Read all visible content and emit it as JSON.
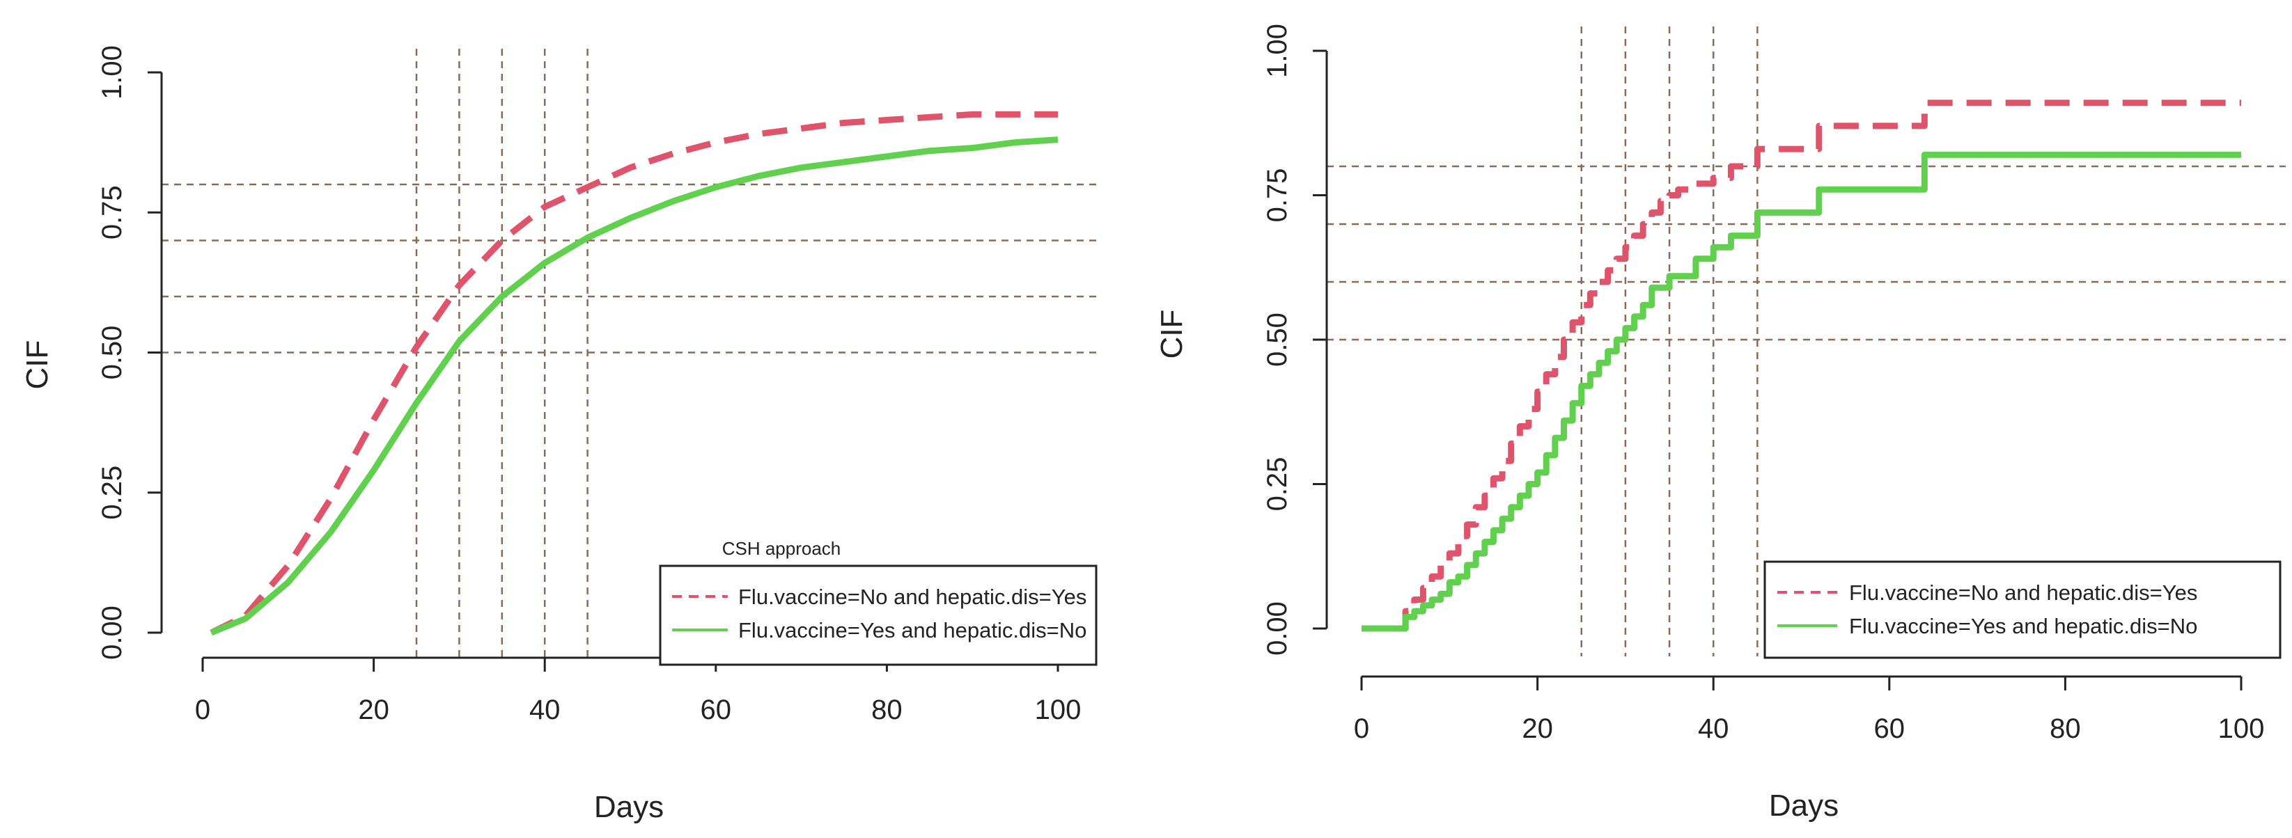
{
  "colors": {
    "no_vaccine_hepatic_yes": "#DF536B",
    "vaccine_yes_hepatic_no": "#61D04F",
    "reference_lines": "#8B6A55",
    "axis": "#222222"
  },
  "chart_data": [
    {
      "type": "line",
      "panel": "left",
      "method": "CSH approach",
      "xlabel": "Days",
      "ylabel": "CIF",
      "xlim": [
        0,
        100
      ],
      "ylim": [
        0,
        1
      ],
      "x_ticks": [
        0,
        20,
        40,
        60,
        80,
        100
      ],
      "x_tick_labels": [
        "0",
        "20",
        "40",
        "60",
        "80",
        "100"
      ],
      "y_ticks": [
        0,
        0.25,
        0.5,
        0.75,
        1
      ],
      "y_tick_labels": [
        "0.00",
        "0.25",
        "0.50",
        "0.75",
        "1.00"
      ],
      "reference_lines": {
        "vertical_x": [
          25,
          30,
          35,
          40,
          45
        ],
        "horizontal_y": [
          0.5,
          0.6,
          0.7,
          0.8
        ]
      },
      "legend": {
        "title": "CSH approach",
        "placement": "bottom-right",
        "entries": [
          "Flu.vaccine=No and hepatic.dis=Yes",
          "Flu.vaccine=Yes and hepatic.dis=No"
        ]
      },
      "series": [
        {
          "name": "Flu.vaccine=No and hepatic.dis=Yes",
          "style": "dashed",
          "x": [
            1,
            5,
            10,
            15,
            20,
            25,
            30,
            35,
            40,
            45,
            50,
            55,
            60,
            65,
            70,
            75,
            80,
            85,
            90,
            95,
            100
          ],
          "y": [
            0.0,
            0.03,
            0.12,
            0.24,
            0.38,
            0.51,
            0.62,
            0.7,
            0.76,
            0.795,
            0.83,
            0.855,
            0.875,
            0.89,
            0.9,
            0.91,
            0.915,
            0.92,
            0.925,
            0.925,
            0.925
          ]
        },
        {
          "name": "Flu.vaccine=Yes and hepatic.dis=No",
          "style": "solid",
          "x": [
            1,
            5,
            10,
            15,
            20,
            25,
            30,
            35,
            40,
            45,
            50,
            55,
            60,
            65,
            70,
            75,
            80,
            85,
            90,
            95,
            100
          ],
          "y": [
            0.0,
            0.025,
            0.09,
            0.18,
            0.29,
            0.41,
            0.52,
            0.6,
            0.66,
            0.705,
            0.74,
            0.77,
            0.795,
            0.815,
            0.83,
            0.84,
            0.85,
            0.86,
            0.865,
            0.875,
            0.88
          ]
        }
      ]
    },
    {
      "type": "line",
      "panel": "right",
      "xlabel": "Days",
      "ylabel": "CIF",
      "xlim": [
        0,
        100
      ],
      "ylim": [
        0,
        1
      ],
      "x_ticks": [
        0,
        20,
        40,
        60,
        80,
        100
      ],
      "x_tick_labels": [
        "0",
        "20",
        "40",
        "60",
        "80",
        "100"
      ],
      "y_ticks": [
        0,
        0.25,
        0.5,
        0.75,
        1
      ],
      "y_tick_labels": [
        "0.00",
        "0.25",
        "0.50",
        "0.75",
        "1.00"
      ],
      "reference_lines": {
        "vertical_x": [
          25,
          30,
          35,
          40,
          45
        ],
        "horizontal_y": [
          0.5,
          0.6,
          0.7,
          0.8
        ]
      },
      "legend": {
        "placement": "bottom-right",
        "entries": [
          "Flu.vaccine=No and hepatic.dis=Yes",
          "Flu.vaccine=Yes and hepatic.dis=No"
        ]
      },
      "series": [
        {
          "name": "Flu.vaccine=No and hepatic.dis=Yes",
          "style": "dashed-step",
          "x": [
            0,
            3,
            5,
            6,
            7,
            8,
            9,
            10,
            11,
            12,
            13,
            14,
            15,
            16,
            17,
            18,
            19,
            20,
            21,
            22,
            23,
            24,
            25,
            26,
            27,
            28,
            29,
            30,
            31,
            32,
            33,
            34,
            35,
            36,
            38,
            40,
            42,
            45,
            52,
            64,
            100
          ],
          "y": [
            0.0,
            0.0,
            0.03,
            0.05,
            0.07,
            0.09,
            0.11,
            0.13,
            0.16,
            0.18,
            0.21,
            0.23,
            0.26,
            0.29,
            0.32,
            0.35,
            0.38,
            0.41,
            0.44,
            0.47,
            0.5,
            0.53,
            0.56,
            0.58,
            0.6,
            0.62,
            0.64,
            0.66,
            0.68,
            0.7,
            0.72,
            0.74,
            0.75,
            0.76,
            0.77,
            0.78,
            0.8,
            0.83,
            0.87,
            0.91,
            0.91
          ]
        },
        {
          "name": "Flu.vaccine=Yes and hepatic.dis=No",
          "style": "solid-step",
          "x": [
            0,
            4,
            5,
            6,
            7,
            8,
            9,
            10,
            11,
            12,
            13,
            14,
            15,
            16,
            17,
            18,
            19,
            20,
            21,
            22,
            23,
            24,
            25,
            26,
            27,
            28,
            29,
            30,
            31,
            32,
            33,
            35,
            38,
            40,
            42,
            45,
            52,
            64,
            100
          ],
          "y": [
            0.0,
            0.0,
            0.02,
            0.03,
            0.04,
            0.05,
            0.06,
            0.08,
            0.09,
            0.11,
            0.13,
            0.15,
            0.17,
            0.19,
            0.21,
            0.23,
            0.25,
            0.27,
            0.3,
            0.33,
            0.36,
            0.39,
            0.42,
            0.44,
            0.46,
            0.48,
            0.5,
            0.52,
            0.54,
            0.56,
            0.59,
            0.61,
            0.64,
            0.66,
            0.68,
            0.72,
            0.76,
            0.82,
            0.82
          ]
        }
      ]
    }
  ]
}
